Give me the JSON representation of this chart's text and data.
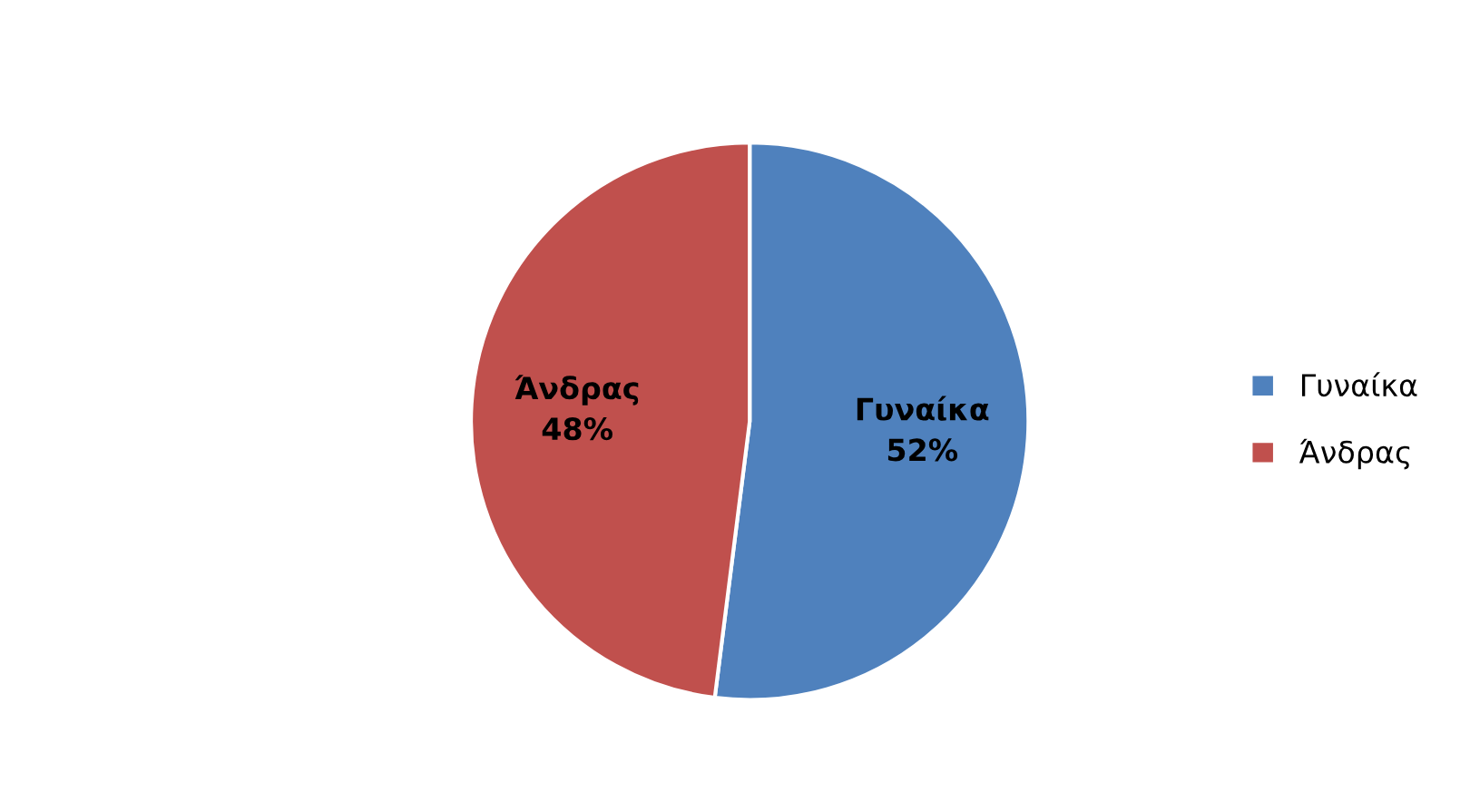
{
  "chart_data": {
    "type": "pie",
    "categories": [
      "Γυναίκα",
      "Άνδρας"
    ],
    "values": [
      52,
      48
    ],
    "value_labels": [
      "52%",
      "48%"
    ],
    "colors": [
      "#4f81bd",
      "#c0504d"
    ],
    "legend": "right"
  }
}
